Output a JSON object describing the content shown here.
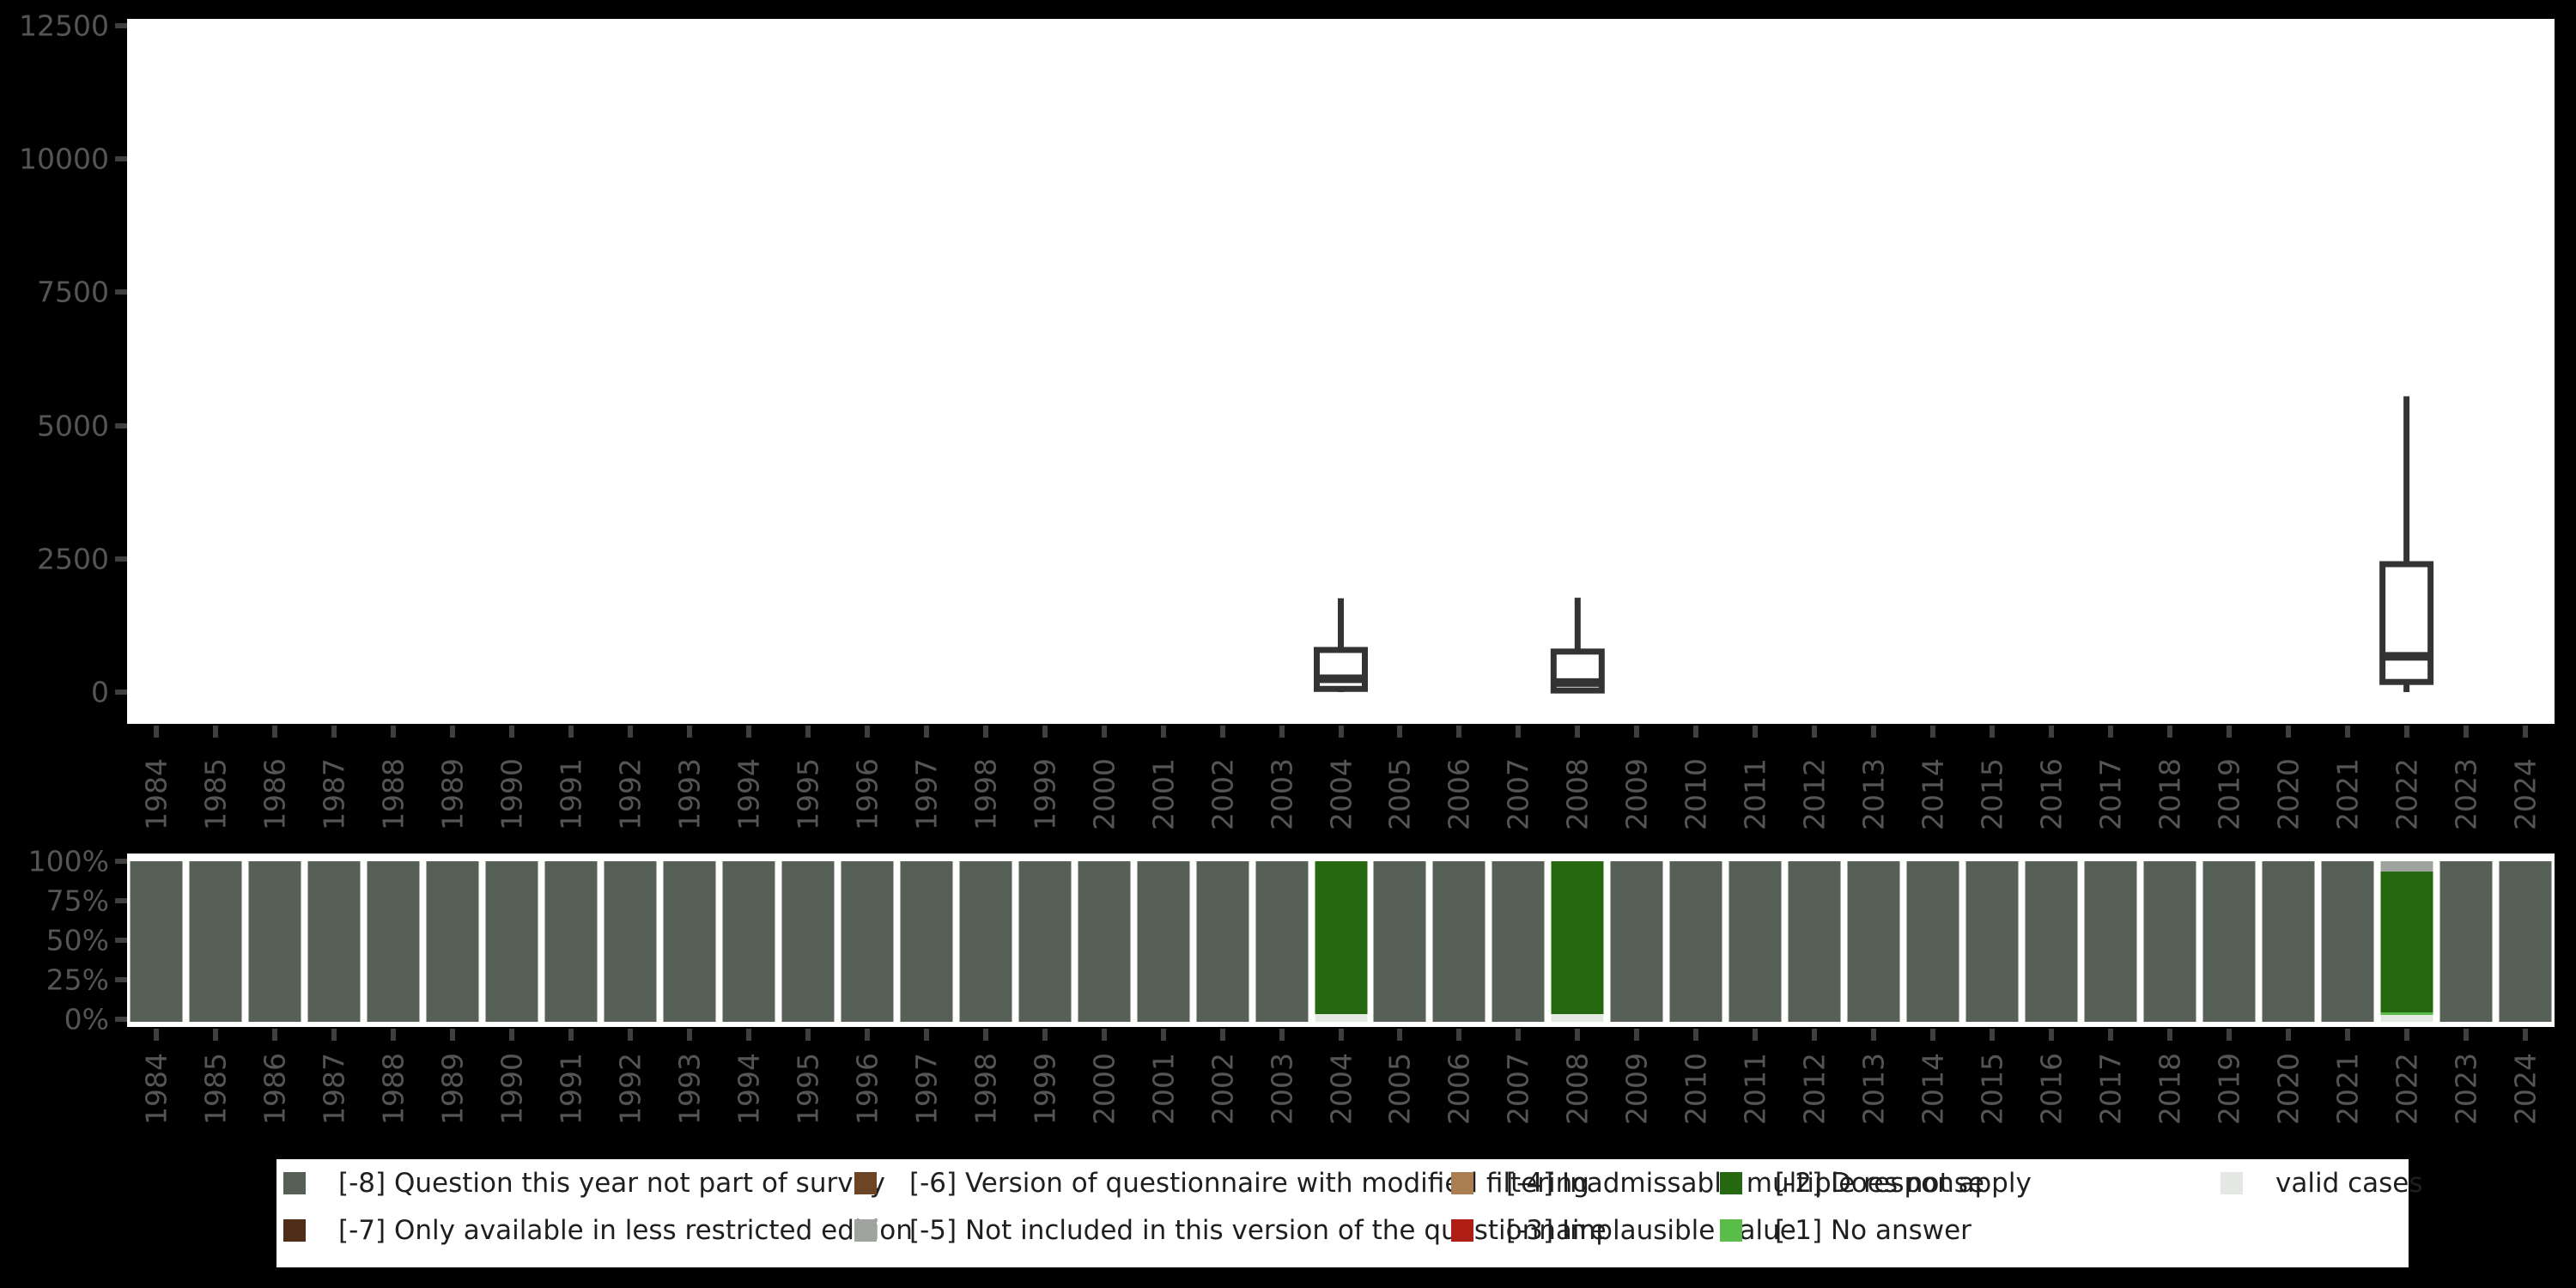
{
  "background_color": "#000000",
  "axis_text_color": "#555555",
  "tick_mark_color": "#3f3f3f",
  "panel_color": "#ffffff",
  "boxplot_stroke_color": "#333333",
  "chart_data": [
    {
      "type": "boxplot",
      "title": "",
      "xlabel": "",
      "ylabel": "",
      "x": [
        1984,
        1985,
        1986,
        1987,
        1988,
        1989,
        1990,
        1991,
        1992,
        1993,
        1994,
        1995,
        1996,
        1997,
        1998,
        1999,
        2000,
        2001,
        2002,
        2003,
        2004,
        2005,
        2006,
        2007,
        2008,
        2009,
        2010,
        2011,
        2012,
        2013,
        2014,
        2015,
        2016,
        2017,
        2018,
        2019,
        2020,
        2021,
        2022,
        2023,
        2024
      ],
      "ylim": [
        0,
        12500
      ],
      "yticks": [
        0,
        2500,
        5000,
        7500,
        10000,
        12500
      ],
      "grid": false,
      "boxes": [
        {
          "year": 2004,
          "whisker_low": 0,
          "q1": 60,
          "median": 250,
          "q3": 790,
          "whisker_high": 1760
        },
        {
          "year": 2008,
          "whisker_low": 0,
          "q1": 30,
          "median": 180,
          "q3": 760,
          "whisker_high": 1770
        },
        {
          "year": 2022,
          "whisker_low": 0,
          "q1": 190,
          "median": 670,
          "q3": 2400,
          "whisker_high": 5550
        }
      ]
    },
    {
      "type": "stacked_bar_100",
      "title": "",
      "xlabel": "",
      "ylabel": "",
      "x": [
        1984,
        1985,
        1986,
        1987,
        1988,
        1989,
        1990,
        1991,
        1992,
        1993,
        1994,
        1995,
        1996,
        1997,
        1998,
        1999,
        2000,
        2001,
        2002,
        2003,
        2004,
        2005,
        2006,
        2007,
        2008,
        2009,
        2010,
        2011,
        2012,
        2013,
        2014,
        2015,
        2016,
        2017,
        2018,
        2019,
        2020,
        2021,
        2022,
        2023,
        2024
      ],
      "yticks_pct": [
        0,
        25,
        50,
        75,
        100
      ],
      "default_stack": [
        {
          "code": "-8",
          "pct": 100
        }
      ],
      "special_stacks": {
        "2004": [
          {
            "code": "-2",
            "pct": 95
          },
          {
            "code": "valid",
            "pct": 5
          }
        ],
        "2008": [
          {
            "code": "-2",
            "pct": 95
          },
          {
            "code": "valid",
            "pct": 5
          }
        ],
        "2022": [
          {
            "code": "-5",
            "pct": 6.5
          },
          {
            "code": "-2",
            "pct": 87.5
          },
          {
            "code": "-1",
            "pct": 1.5
          },
          {
            "code": "valid",
            "pct": 4.5
          }
        ]
      }
    }
  ],
  "legend": {
    "items": [
      {
        "code": "-8",
        "label": "[-8] Question this year not part of survey",
        "color": "#576057"
      },
      {
        "code": "-7",
        "label": "[-7] Only available in less restricted edition",
        "color": "#4f2d18"
      },
      {
        "code": "-6",
        "label": "[-6] Version of questionnaire with modified filtering",
        "color": "#6d4424"
      },
      {
        "code": "-5",
        "label": "[-5] Not included in this version of the questionnaire",
        "color": "#9fa49e"
      },
      {
        "code": "-4",
        "label": "[-4] Inadmissable multiple response",
        "color": "#a87e52"
      },
      {
        "code": "-3",
        "label": "[-3] Implausible value",
        "color": "#ae1e15"
      },
      {
        "code": "-2",
        "label": "[-2] Does not apply",
        "color": "#26680f"
      },
      {
        "code": "-1",
        "label": "[-1] No answer",
        "color": "#5abc49"
      },
      {
        "code": "valid",
        "label": "valid cases",
        "color": "#e4e8e2"
      }
    ]
  }
}
